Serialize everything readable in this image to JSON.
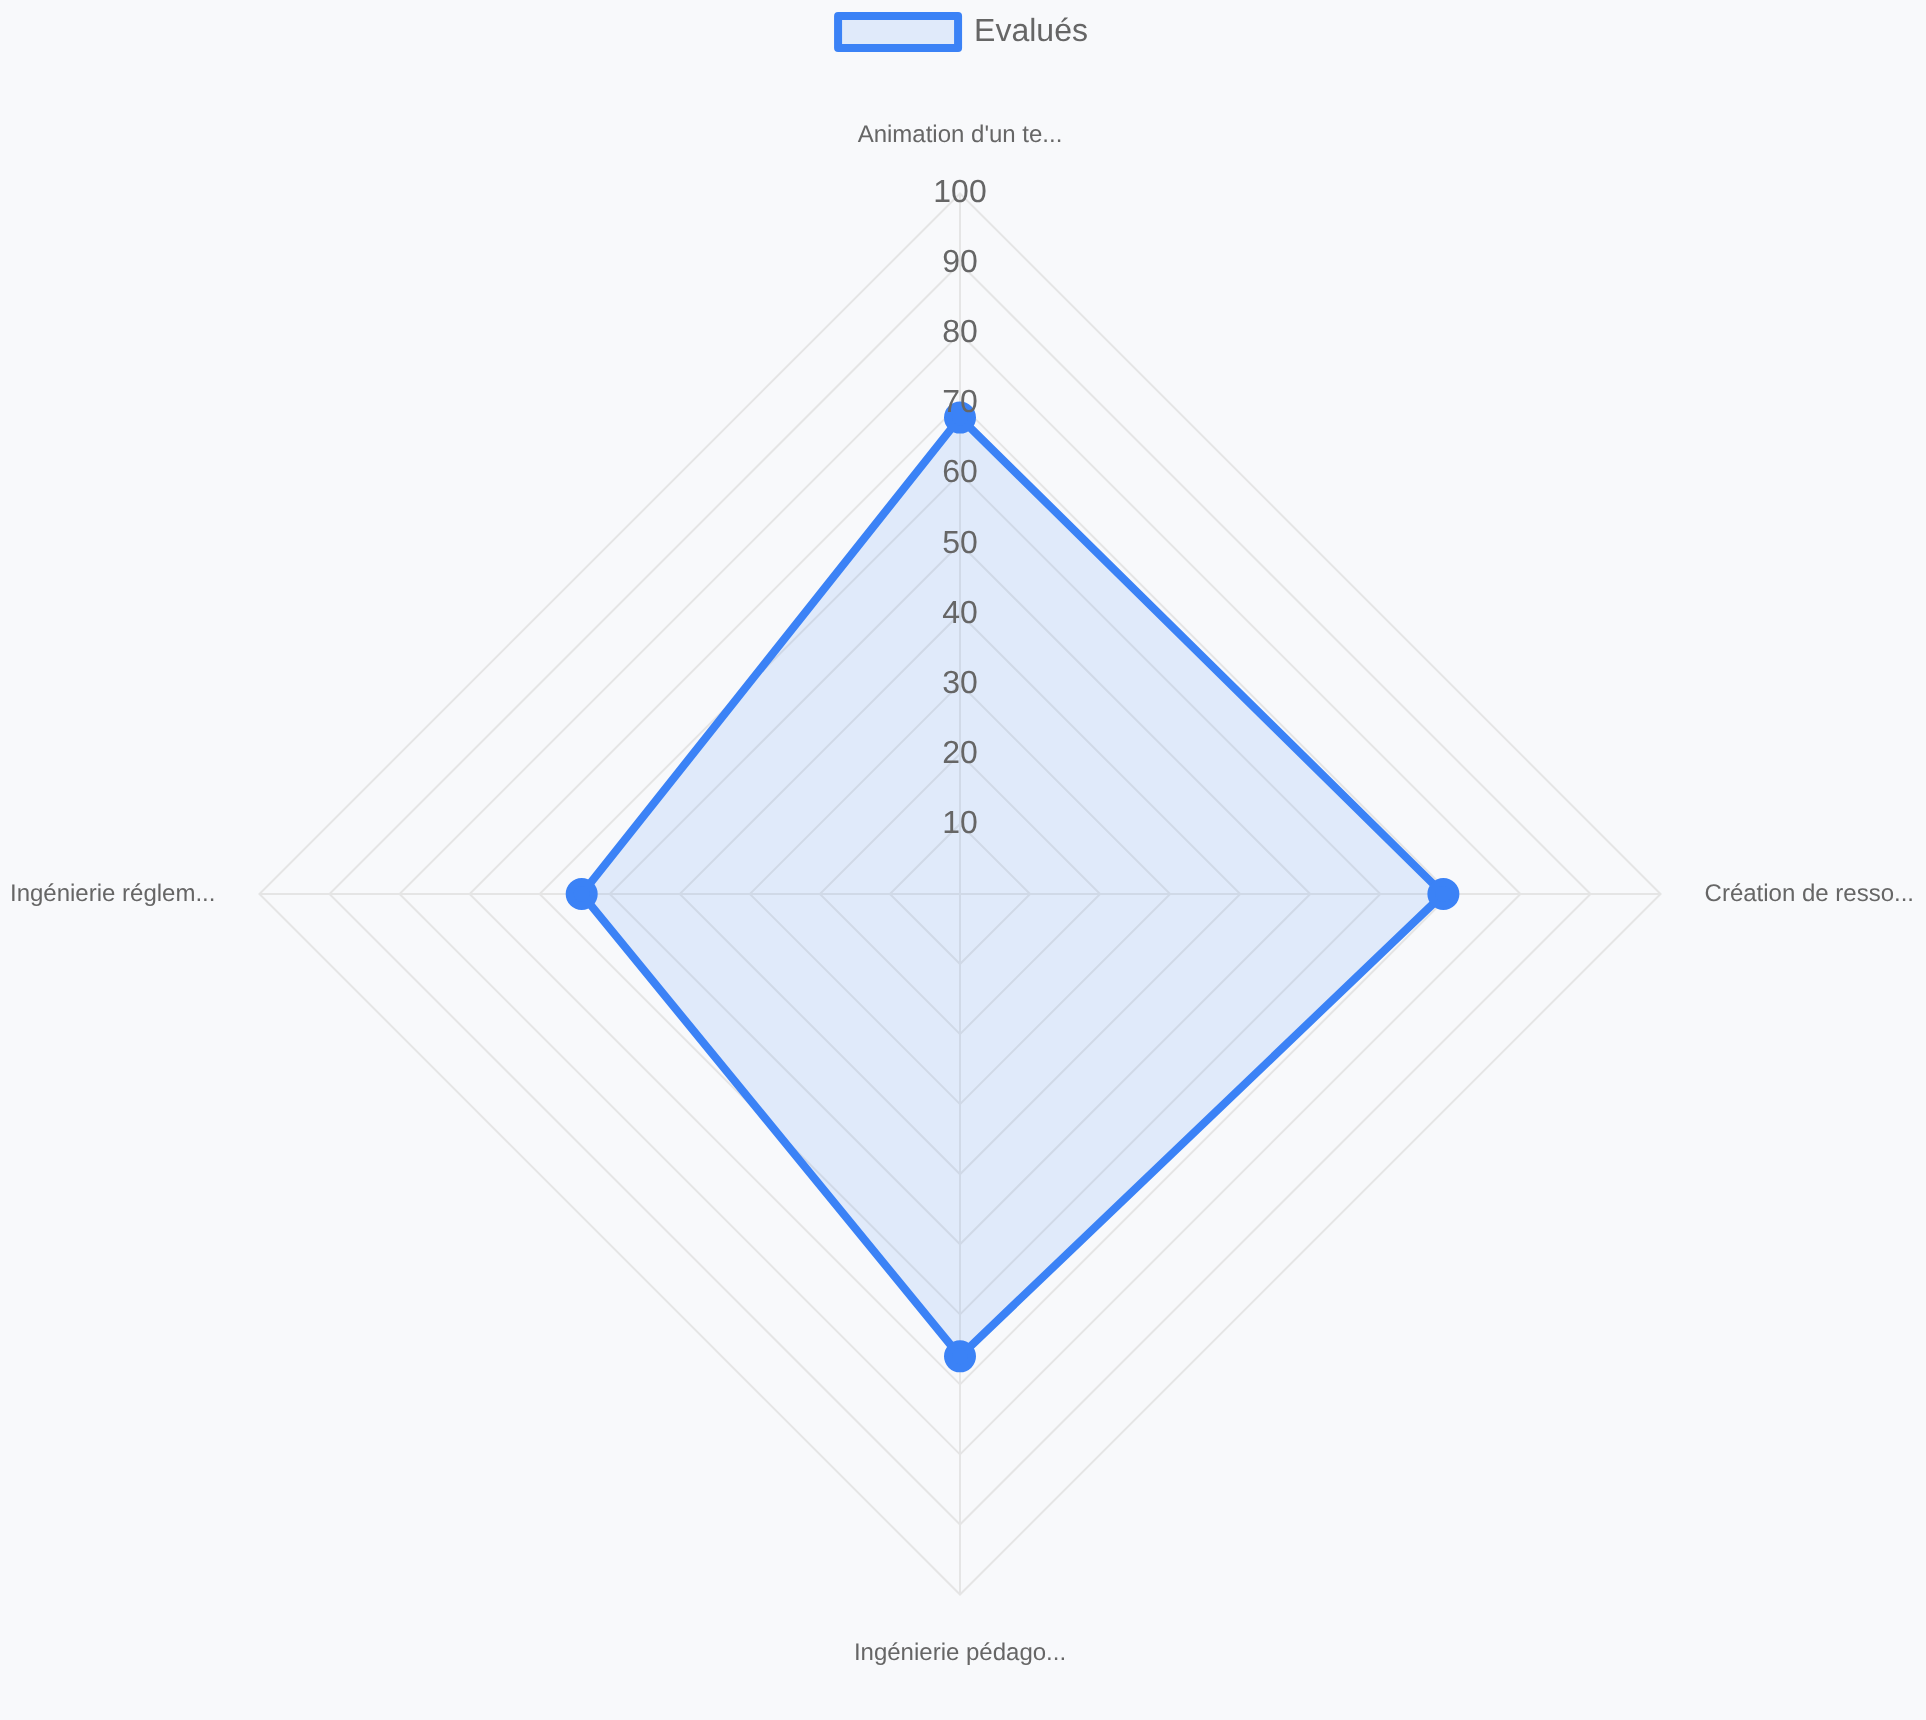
{
  "chart_data": {
    "type": "radar",
    "categories": [
      "Animation d'un te...",
      "Création de resso...",
      "Ingénierie pédago...",
      "Ingénierie réglem..."
    ],
    "series": [
      {
        "name": "Evalués",
        "color": "#3b82f6",
        "values": [
          68,
          69,
          66,
          54
        ]
      }
    ],
    "ylim": [
      0,
      100
    ],
    "yticks": [
      10,
      20,
      30,
      40,
      50,
      60,
      70,
      80,
      90,
      100
    ],
    "grid": true,
    "legend": "top",
    "marker": "circle"
  }
}
